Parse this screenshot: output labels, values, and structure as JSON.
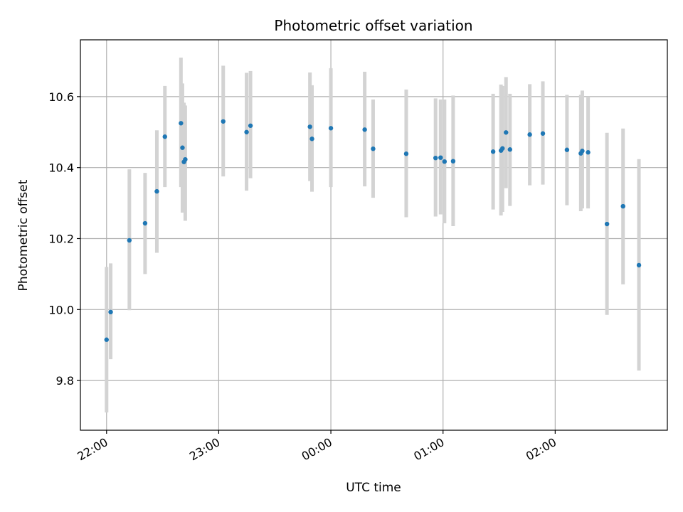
{
  "chart_data": {
    "type": "scatter",
    "title": "Photometric offset variation",
    "xlabel": "UTC time",
    "ylabel": "Photometric offset",
    "x_unit": "minutes since 22:00 UTC",
    "xlim": [
      -14,
      300
    ],
    "ylim": [
      9.66,
      10.76
    ],
    "x_ticks": [
      {
        "value": 0,
        "label": "22:00"
      },
      {
        "value": 60,
        "label": "23:00"
      },
      {
        "value": 120,
        "label": "00:00"
      },
      {
        "value": 180,
        "label": "01:00"
      },
      {
        "value": 240,
        "label": "02:00"
      }
    ],
    "y_ticks": [
      {
        "value": 9.8,
        "label": "9.8"
      },
      {
        "value": 10.0,
        "label": "10.0"
      },
      {
        "value": 10.2,
        "label": "10.2"
      },
      {
        "value": 10.4,
        "label": "10.4"
      },
      {
        "value": 10.6,
        "label": "10.6"
      }
    ],
    "grid": true,
    "point_color": "#1f77b4",
    "errorbar_color": "#d3d3d3",
    "points": [
      {
        "x": 0.0,
        "y": 9.915,
        "lo": 9.71,
        "hi": 10.12
      },
      {
        "x": 2.2,
        "y": 9.993,
        "lo": 9.86,
        "hi": 10.13
      },
      {
        "x": 12.2,
        "y": 10.195,
        "lo": 9.998,
        "hi": 10.395
      },
      {
        "x": 20.6,
        "y": 10.243,
        "lo": 10.1,
        "hi": 10.385
      },
      {
        "x": 26.9,
        "y": 10.333,
        "lo": 10.16,
        "hi": 10.505
      },
      {
        "x": 31.2,
        "y": 10.487,
        "lo": 10.345,
        "hi": 10.63
      },
      {
        "x": 39.8,
        "y": 10.525,
        "lo": 10.345,
        "hi": 10.71
      },
      {
        "x": 40.6,
        "y": 10.456,
        "lo": 10.273,
        "hi": 10.637
      },
      {
        "x": 41.4,
        "y": 10.416,
        "lo": 10.273,
        "hi": 10.583
      },
      {
        "x": 42.1,
        "y": 10.423,
        "lo": 10.25,
        "hi": 10.575
      },
      {
        "x": 62.4,
        "y": 10.53,
        "lo": 10.375,
        "hi": 10.687
      },
      {
        "x": 74.9,
        "y": 10.5,
        "lo": 10.335,
        "hi": 10.667
      },
      {
        "x": 77.0,
        "y": 10.518,
        "lo": 10.37,
        "hi": 10.672
      },
      {
        "x": 108.8,
        "y": 10.515,
        "lo": 10.362,
        "hi": 10.668
      },
      {
        "x": 109.9,
        "y": 10.481,
        "lo": 10.332,
        "hi": 10.632
      },
      {
        "x": 120.0,
        "y": 10.511,
        "lo": 10.345,
        "hi": 10.68
      },
      {
        "x": 138.1,
        "y": 10.507,
        "lo": 10.347,
        "hi": 10.67
      },
      {
        "x": 142.6,
        "y": 10.453,
        "lo": 10.315,
        "hi": 10.592
      },
      {
        "x": 160.3,
        "y": 10.439,
        "lo": 10.26,
        "hi": 10.62
      },
      {
        "x": 176.0,
        "y": 10.427,
        "lo": 10.262,
        "hi": 10.595
      },
      {
        "x": 178.7,
        "y": 10.428,
        "lo": 10.268,
        "hi": 10.592
      },
      {
        "x": 180.8,
        "y": 10.417,
        "lo": 10.243,
        "hi": 10.592
      },
      {
        "x": 185.4,
        "y": 10.418,
        "lo": 10.235,
        "hi": 10.603
      },
      {
        "x": 206.8,
        "y": 10.445,
        "lo": 10.282,
        "hi": 10.608
      },
      {
        "x": 211.0,
        "y": 10.448,
        "lo": 10.265,
        "hi": 10.634
      },
      {
        "x": 211.8,
        "y": 10.454,
        "lo": 10.275,
        "hi": 10.63
      },
      {
        "x": 213.7,
        "y": 10.499,
        "lo": 10.342,
        "hi": 10.655
      },
      {
        "x": 215.8,
        "y": 10.451,
        "lo": 10.292,
        "hi": 10.608
      },
      {
        "x": 226.4,
        "y": 10.493,
        "lo": 10.35,
        "hi": 10.635
      },
      {
        "x": 233.4,
        "y": 10.496,
        "lo": 10.352,
        "hi": 10.643
      },
      {
        "x": 246.3,
        "y": 10.45,
        "lo": 10.294,
        "hi": 10.605
      },
      {
        "x": 253.7,
        "y": 10.44,
        "lo": 10.277,
        "hi": 10.605
      },
      {
        "x": 254.5,
        "y": 10.447,
        "lo": 10.285,
        "hi": 10.617
      },
      {
        "x": 257.6,
        "y": 10.443,
        "lo": 10.285,
        "hi": 10.6
      },
      {
        "x": 267.7,
        "y": 10.241,
        "lo": 9.985,
        "hi": 10.498
      },
      {
        "x": 276.3,
        "y": 10.291,
        "lo": 10.071,
        "hi": 10.51
      },
      {
        "x": 284.8,
        "y": 10.125,
        "lo": 9.828,
        "hi": 10.424
      }
    ]
  }
}
